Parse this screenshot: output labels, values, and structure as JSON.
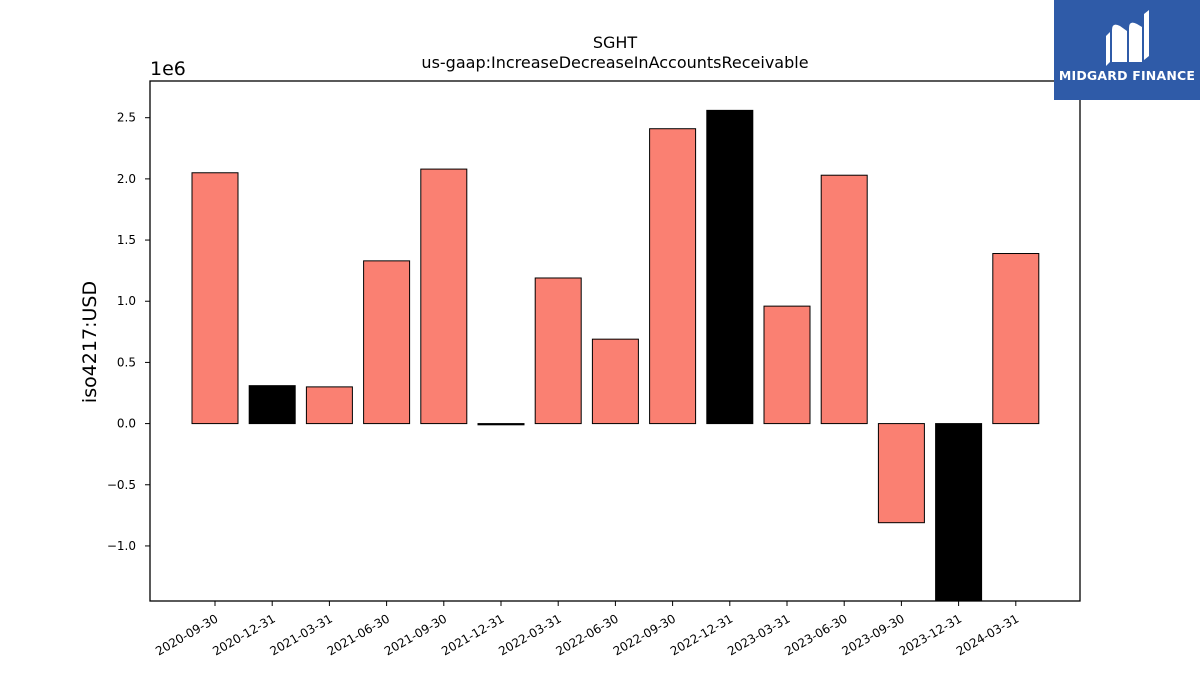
{
  "chart_data": {
    "type": "bar",
    "title": "SGHT",
    "subtitle": "us-gaap:IncreaseDecreaseInAccountsReceivable",
    "xlabel": "",
    "ylabel": "iso4217:USD",
    "scale_label": "1e6",
    "categories": [
      "2020-09-30",
      "2020-12-31",
      "2021-03-31",
      "2021-06-30",
      "2021-09-30",
      "2021-12-31",
      "2022-03-31",
      "2022-06-30",
      "2022-09-30",
      "2022-12-31",
      "2023-03-31",
      "2023-06-30",
      "2023-09-30",
      "2023-12-31",
      "2024-03-31"
    ],
    "values": [
      2050000,
      310000,
      300000,
      1330000,
      2080000,
      -10000,
      1190000,
      690000,
      2410000,
      2560000,
      960000,
      2030000,
      -810000,
      -1450000,
      1390000
    ],
    "highlight": [
      false,
      true,
      false,
      false,
      false,
      true,
      false,
      false,
      false,
      true,
      false,
      false,
      false,
      true,
      false
    ],
    "ylim": [
      -1450000,
      2800000
    ],
    "yticks": [
      -1.0,
      -0.5,
      0.0,
      0.5,
      1.0,
      1.5,
      2.0,
      2.5
    ],
    "ytick_labels": [
      "−1.0",
      "−0.5",
      "0.0",
      "0.5",
      "1.0",
      "1.5",
      "2.0",
      "2.5"
    ],
    "grid": false,
    "colors": {
      "bar": "#fa8072",
      "highlight": "#000000",
      "edge": "#000000"
    }
  },
  "logo": {
    "text": "MIDGARD FINANCE",
    "icon": "midgard-logo-icon"
  }
}
